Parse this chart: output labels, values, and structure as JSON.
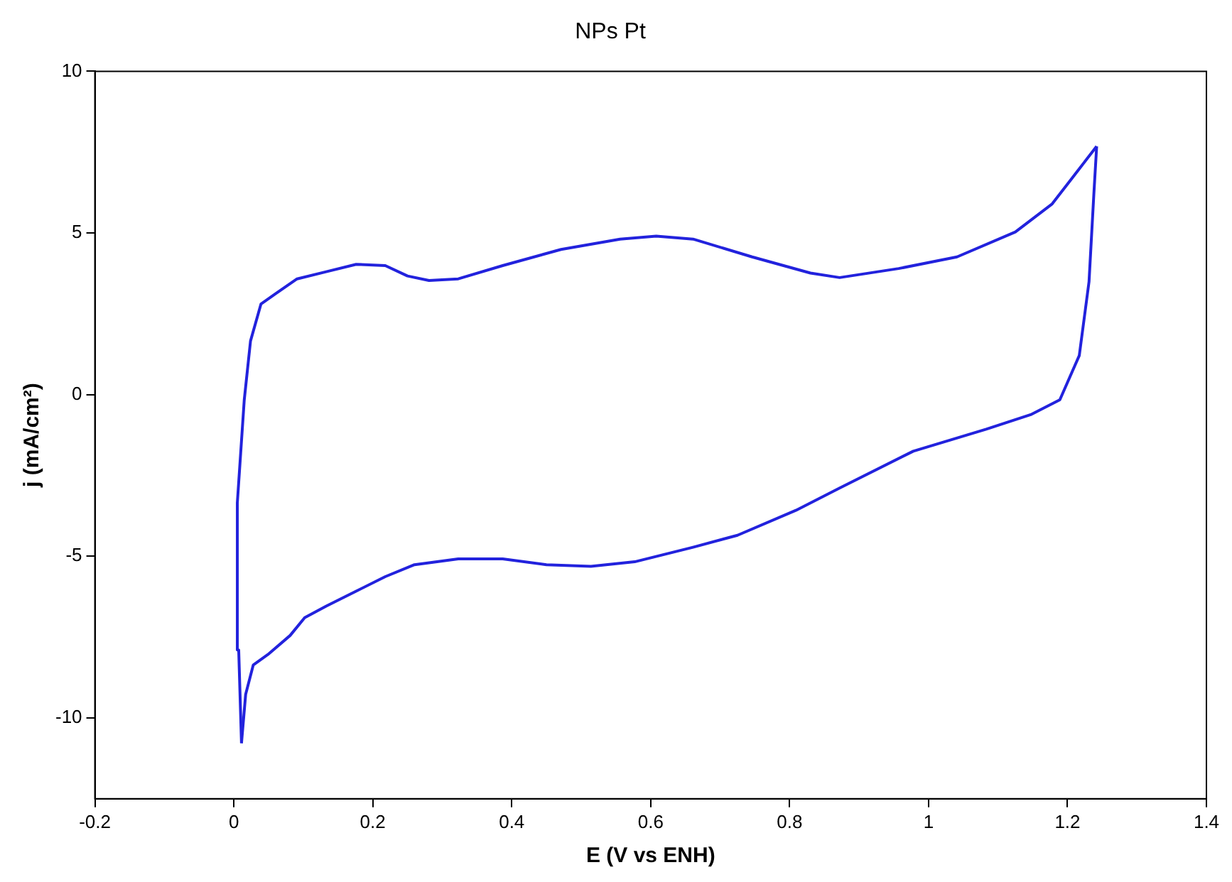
{
  "chart_data": {
    "type": "line",
    "title": "NPs Pt",
    "xlabel": "E (V vs ENH)",
    "ylabel": "j (mA/cm²)",
    "xlim": [
      -0.2,
      1.4
    ],
    "xticks": [
      -0.2,
      0,
      0.2,
      0.4,
      0.6,
      0.8,
      1.0,
      1.2,
      1.4
    ],
    "ylim": [
      -12.5,
      10
    ],
    "yticks": [
      -10,
      -5,
      0,
      5,
      10
    ],
    "grid": false,
    "legend": false,
    "marker": "none",
    "line_style": "solid",
    "series": [
      {
        "color": "#2222dd",
        "x": [
          0.011,
          0.007,
          0.005,
          0.015,
          0.024,
          0.039,
          0.06,
          0.091,
          0.133,
          0.176,
          0.218,
          0.25,
          0.281,
          0.323,
          0.387,
          0.471,
          0.556,
          0.608,
          0.661,
          0.746,
          0.83,
          0.872,
          0.957,
          1.041,
          1.125,
          1.178,
          1.214,
          1.242
        ],
        "values": [
          -10.78,
          -7.9,
          -3.35,
          -0.16,
          1.66,
          2.8,
          3.12,
          3.58,
          3.8,
          4.03,
          3.99,
          3.67,
          3.53,
          3.58,
          3.99,
          4.49,
          4.81,
          4.9,
          4.81,
          4.26,
          3.76,
          3.62,
          3.9,
          4.26,
          5.03,
          5.9,
          6.9,
          7.68
        ]
      },
      {
        "color": "#2222dd",
        "x": [
          1.242,
          1.238,
          1.231,
          1.217,
          1.189,
          1.147,
          1.083,
          0.978,
          0.872,
          0.809,
          0.725,
          0.661,
          0.577,
          0.514,
          0.45,
          0.387,
          0.323,
          0.26,
          0.218,
          0.176,
          0.133,
          0.102,
          0.081,
          0.049,
          0.028,
          0.017,
          0.011
        ],
        "values": [
          7.68,
          6.22,
          3.49,
          1.21,
          -0.16,
          -0.62,
          -1.07,
          -1.75,
          -2.89,
          -3.58,
          -4.35,
          -4.72,
          -5.17,
          -5.31,
          -5.26,
          -5.08,
          -5.08,
          -5.26,
          -5.63,
          -6.08,
          -6.54,
          -6.9,
          -7.45,
          -8.04,
          -8.36,
          -9.27,
          -10.78
        ]
      }
    ]
  }
}
